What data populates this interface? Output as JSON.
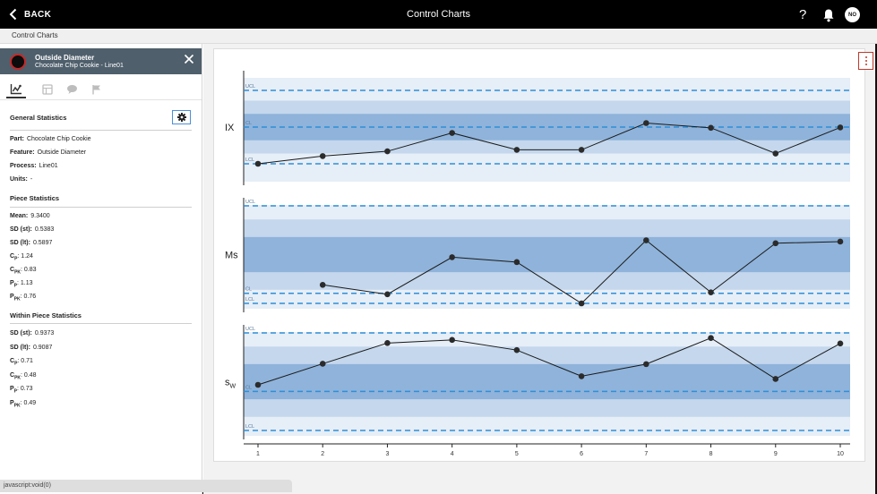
{
  "header": {
    "back_label": "BACK",
    "title": "Control Charts",
    "help_label": "?",
    "avatar_initials": "NO"
  },
  "breadcrumb": "Control Charts",
  "feature_panel": {
    "title": "Outside Diameter",
    "subtitle": "Chocolate Chip Cookie - Line01",
    "tabs": [
      "chart-icon",
      "table-icon",
      "comment-icon",
      "flag-icon"
    ],
    "general_title": "General Statistics",
    "general": [
      {
        "label": "Part:",
        "value": "Chocolate Chip Cookie"
      },
      {
        "label": "Feature:",
        "value": "Outside Diameter"
      },
      {
        "label": "Process:",
        "value": "Line01"
      },
      {
        "label": "Units:",
        "value": "-"
      }
    ],
    "piece_title": "Piece Statistics",
    "piece": [
      {
        "label": "Mean:",
        "sub": "",
        "value": "9.3400"
      },
      {
        "label": "SD (st):",
        "sub": "",
        "value": "0.5383"
      },
      {
        "label": "SD (lt):",
        "sub": "",
        "value": "0.5897"
      },
      {
        "label": "C",
        "sub": "P",
        "value": ": 1.24"
      },
      {
        "label": "C",
        "sub": "PK",
        "value": ": 0.83"
      },
      {
        "label": "P",
        "sub": "P",
        "value": ": 1.13"
      },
      {
        "label": "P",
        "sub": "PK",
        "value": ": 0.76"
      }
    ],
    "within_title": "Within Piece Statistics",
    "within": [
      {
        "label": "SD (st):",
        "sub": "",
        "value": "0.9373"
      },
      {
        "label": "SD (lt):",
        "sub": "",
        "value": "0.9087"
      },
      {
        "label": "C",
        "sub": "P",
        "value": ": 0.71"
      },
      {
        "label": "C",
        "sub": "PK",
        "value": ": 0.48"
      },
      {
        "label": "P",
        "sub": "P",
        "value": ": 0.73"
      },
      {
        "label": "P",
        "sub": "PK",
        "value": ": 0.49"
      }
    ]
  },
  "status_text": "javascript:void(0)",
  "colors": {
    "topbar": "#000000",
    "zone_outer": "#e6eef7",
    "zone_mid": "#c4d7ec",
    "zone_inner": "#8fb3da",
    "limit_line": "#2f8fd8",
    "series_line": "#1a1a1a"
  },
  "chart_data": {
    "type": "line",
    "x": [
      1,
      2,
      3,
      4,
      5,
      6,
      7,
      8,
      9,
      10
    ],
    "x_tick_labels": [
      "1",
      "2",
      "3",
      "4",
      "5",
      "6",
      "7",
      "8",
      "9",
      "10"
    ],
    "limit_labels": {
      "ucl": "UCL",
      "cl": "CL",
      "lcl": "LCL"
    },
    "panels": [
      {
        "name": "IX",
        "name_sub": "",
        "lcl": 0,
        "cl": 1,
        "ucl": 2,
        "values": [
          0.0,
          0.21,
          0.34,
          0.84,
          0.38,
          0.38,
          1.11,
          0.98,
          0.28,
          0.99
        ]
      },
      {
        "name": "Ms",
        "name_sub": "",
        "lcl": 0,
        "cl": 0.31,
        "ucl": 3,
        "values": [
          null,
          0.57,
          0.28,
          1.42,
          1.27,
          0.0,
          1.94,
          0.34,
          1.85,
          1.9
        ]
      },
      {
        "name": "s",
        "name_sub": "W",
        "lcl": 0,
        "cl": 1,
        "ucl": 2.5,
        "values": [
          1.17,
          1.71,
          2.24,
          2.32,
          2.06,
          1.39,
          1.7,
          2.37,
          1.32,
          2.23
        ]
      }
    ]
  }
}
